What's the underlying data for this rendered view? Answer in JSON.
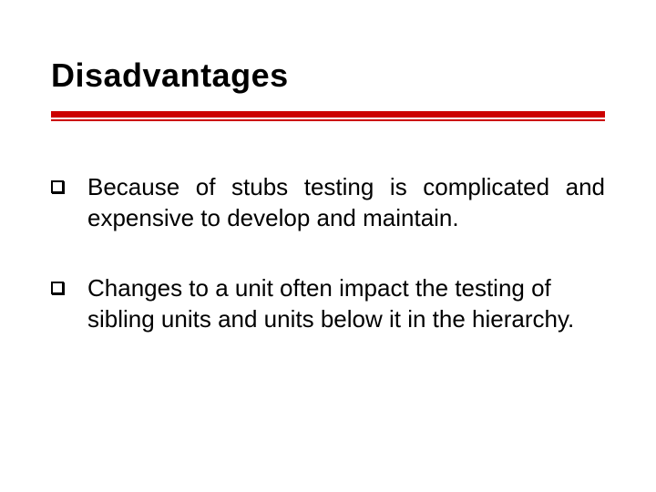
{
  "colors": {
    "rule": "#cc0000",
    "text": "#000000",
    "background": "#ffffff"
  },
  "title": "Disadvantages",
  "bullets": [
    {
      "text": "Because of stubs testing is complicated and expensive to develop and maintain.",
      "justify": true
    },
    {
      "text": "Changes to a unit often impact the testing of sibling units and units below it in the hierarchy.",
      "justify": false
    }
  ],
  "typography": {
    "title_fontsize": 36,
    "body_fontsize": 26,
    "font_family": "Verdana"
  }
}
